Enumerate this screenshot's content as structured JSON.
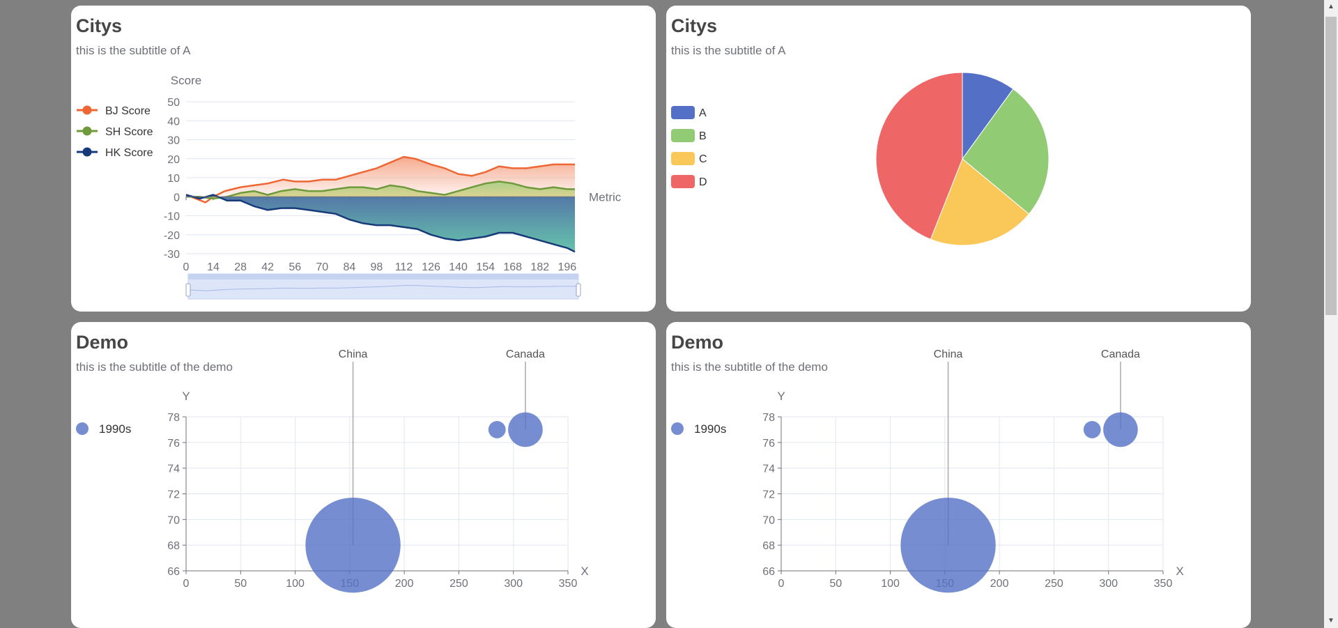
{
  "cards": {
    "a": {
      "title": "Citys",
      "subtitle": "this is the subtitle of A"
    },
    "b": {
      "title": "Citys",
      "subtitle": "this is the subtitle of A"
    },
    "c": {
      "title": "Demo",
      "subtitle": "this is the subtitle of the demo"
    },
    "d": {
      "title": "Demo",
      "subtitle": "this is the subtitle of the demo"
    }
  },
  "chart_data": [
    {
      "type": "area",
      "title": "Citys",
      "subtitle": "this is the subtitle of A",
      "xlabel": "Metric",
      "ylabel": "Score",
      "xlim": [
        0,
        200
      ],
      "ylim": [
        -30,
        50
      ],
      "xticks": [
        0,
        14,
        28,
        42,
        56,
        70,
        84,
        98,
        112,
        126,
        140,
        154,
        168,
        182,
        196
      ],
      "yticks": [
        50,
        40,
        30,
        20,
        10,
        0,
        -10,
        -20,
        -30
      ],
      "legend_position": "left",
      "datazoom": true,
      "series": [
        {
          "name": "BJ Score",
          "color": "#ee6633",
          "points": [
            [
              0,
              1
            ],
            [
              5,
              -1
            ],
            [
              10,
              -3
            ],
            [
              14,
              0
            ],
            [
              20,
              3
            ],
            [
              28,
              5
            ],
            [
              35,
              6
            ],
            [
              42,
              7
            ],
            [
              50,
              9
            ],
            [
              56,
              8
            ],
            [
              63,
              8
            ],
            [
              70,
              9
            ],
            [
              77,
              9
            ],
            [
              84,
              11
            ],
            [
              91,
              13
            ],
            [
              98,
              15
            ],
            [
              105,
              18
            ],
            [
              112,
              21
            ],
            [
              118,
              20
            ],
            [
              126,
              17
            ],
            [
              133,
              15
            ],
            [
              140,
              12
            ],
            [
              147,
              11
            ],
            [
              154,
              13
            ],
            [
              161,
              16
            ],
            [
              168,
              15
            ],
            [
              175,
              15
            ],
            [
              182,
              16
            ],
            [
              189,
              17
            ],
            [
              196,
              17
            ],
            [
              200,
              17
            ]
          ]
        },
        {
          "name": "SH Score",
          "color": "#6f9a3c",
          "points": [
            [
              0,
              0
            ],
            [
              7,
              0
            ],
            [
              14,
              -1
            ],
            [
              21,
              0
            ],
            [
              28,
              2
            ],
            [
              35,
              3
            ],
            [
              42,
              1
            ],
            [
              49,
              3
            ],
            [
              56,
              4
            ],
            [
              63,
              3
            ],
            [
              70,
              3
            ],
            [
              77,
              4
            ],
            [
              84,
              5
            ],
            [
              91,
              5
            ],
            [
              98,
              4
            ],
            [
              105,
              6
            ],
            [
              112,
              5
            ],
            [
              119,
              3
            ],
            [
              126,
              2
            ],
            [
              133,
              1
            ],
            [
              140,
              3
            ],
            [
              147,
              5
            ],
            [
              154,
              7
            ],
            [
              161,
              8
            ],
            [
              168,
              7
            ],
            [
              175,
              5
            ],
            [
              182,
              4
            ],
            [
              189,
              5
            ],
            [
              196,
              4
            ],
            [
              200,
              4
            ]
          ]
        },
        {
          "name": "HK Score",
          "color": "#173b7a",
          "points": [
            [
              0,
              1
            ],
            [
              7,
              -1
            ],
            [
              14,
              1
            ],
            [
              21,
              -2
            ],
            [
              28,
              -2
            ],
            [
              35,
              -5
            ],
            [
              42,
              -7
            ],
            [
              49,
              -6
            ],
            [
              56,
              -6
            ],
            [
              63,
              -7
            ],
            [
              70,
              -8
            ],
            [
              77,
              -9
            ],
            [
              84,
              -12
            ],
            [
              91,
              -14
            ],
            [
              98,
              -15
            ],
            [
              105,
              -15
            ],
            [
              112,
              -16
            ],
            [
              119,
              -17
            ],
            [
              126,
              -20
            ],
            [
              133,
              -22
            ],
            [
              140,
              -23
            ],
            [
              147,
              -22
            ],
            [
              154,
              -21
            ],
            [
              161,
              -19
            ],
            [
              168,
              -19
            ],
            [
              175,
              -21
            ],
            [
              182,
              -23
            ],
            [
              189,
              -25
            ],
            [
              196,
              -27
            ],
            [
              200,
              -29
            ]
          ]
        }
      ]
    },
    {
      "type": "pie",
      "title": "Citys",
      "subtitle": "this is the subtitle of A",
      "legend_position": "left",
      "slices": [
        {
          "label": "A",
          "value": 10,
          "color": "#5470c6"
        },
        {
          "label": "B",
          "value": 26,
          "color": "#91cc75"
        },
        {
          "label": "C",
          "value": 20,
          "color": "#fac858"
        },
        {
          "label": "D",
          "value": 44,
          "color": "#ee6666"
        }
      ]
    },
    {
      "type": "scatter",
      "title": "Demo",
      "subtitle": "this is the subtitle of the demo",
      "xlabel": "X",
      "ylabel": "Y",
      "xlim": [
        0,
        350
      ],
      "ylim": [
        66,
        78
      ],
      "xticks": [
        0,
        50,
        100,
        150,
        200,
        250,
        300,
        350
      ],
      "yticks": [
        78,
        76,
        74,
        72,
        70,
        68,
        66
      ],
      "legend_position": "left",
      "series": [
        {
          "name": "1990s",
          "color": "#5470c6",
          "points": [
            {
              "x": 153,
              "y": 68,
              "size": 44,
              "label": "China"
            },
            {
              "x": 285,
              "y": 77,
              "size": 8,
              "label": ""
            },
            {
              "x": 311,
              "y": 77,
              "size": 16,
              "label": "Canada"
            }
          ]
        }
      ]
    },
    {
      "type": "scatter",
      "title": "Demo",
      "subtitle": "this is the subtitle of the demo",
      "xlabel": "X",
      "ylabel": "Y",
      "xlim": [
        0,
        350
      ],
      "ylim": [
        66,
        78
      ],
      "xticks": [
        0,
        50,
        100,
        150,
        200,
        250,
        300,
        350
      ],
      "yticks": [
        78,
        76,
        74,
        72,
        70,
        68,
        66
      ],
      "legend_position": "left",
      "series": [
        {
          "name": "1990s",
          "color": "#5470c6",
          "points": [
            {
              "x": 153,
              "y": 68,
              "size": 44,
              "label": "China"
            },
            {
              "x": 285,
              "y": 77,
              "size": 8,
              "label": ""
            },
            {
              "x": 311,
              "y": 77,
              "size": 16,
              "label": "Canada"
            }
          ]
        }
      ]
    }
  ]
}
